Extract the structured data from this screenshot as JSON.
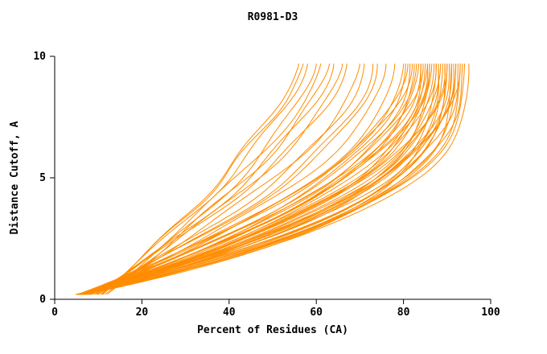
{
  "title": "R0981-D3",
  "colors": {
    "curve": "#ff8c00",
    "axis": "#000000",
    "background": "#ffffff",
    "text": "#000000"
  },
  "chart_data": {
    "type": "line",
    "title": "R0981-D3",
    "xlabel": "Percent of Residues (CA)",
    "ylabel": "Distance Cutoff, A",
    "xlim": [
      0,
      100
    ],
    "ylim": [
      0,
      10
    ],
    "xticks": [
      0,
      20,
      40,
      60,
      80,
      100
    ],
    "yticks": [
      0,
      5,
      10
    ],
    "grid": false,
    "legend": false,
    "curve_color": "#ff8c00",
    "y_start": 0.2,
    "y_end": 9.7,
    "curve_model": "x(y) = x_end - (x_end - x_start) * ((9.7 - y) / 9.5)^shape  for y in [0.2, 9.7]; wiggle term wiggle_amp * sin(wiggle_freq*y + wiggle_phase) * sin(pi*(y-0.2)/9.5) added to x",
    "curve_param_names": [
      "x_start",
      "x_end",
      "shape",
      "wiggle_amp",
      "wiggle_freq",
      "wiggle_phase"
    ],
    "curves": [
      [
        5.0,
        95.0,
        2.9,
        0.5,
        1.3,
        0.5
      ],
      [
        5.5,
        94.0,
        2.8,
        0.7,
        1.1,
        1.2
      ],
      [
        6.0,
        93.5,
        2.7,
        0.5,
        1.6,
        2.0
      ],
      [
        4.8,
        93.0,
        2.9,
        0.6,
        1.2,
        0.2
      ],
      [
        5.2,
        92.5,
        2.6,
        0.8,
        1.4,
        2.8
      ],
      [
        6.5,
        92.0,
        2.8,
        0.5,
        1.0,
        1.7
      ],
      [
        5.8,
        91.5,
        2.5,
        0.7,
        1.5,
        0.9
      ],
      [
        5.1,
        91.0,
        2.7,
        0.5,
        1.2,
        2.4
      ],
      [
        6.2,
        90.5,
        2.4,
        0.6,
        1.3,
        3.1
      ],
      [
        5.4,
        90.0,
        2.8,
        0.5,
        1.1,
        1.5
      ],
      [
        6.8,
        89.5,
        2.3,
        0.8,
        1.4,
        0.7
      ],
      [
        5.6,
        89.0,
        2.6,
        0.5,
        1.7,
        2.2
      ],
      [
        6.1,
        88.5,
        2.2,
        0.7,
        1.2,
        1.0
      ],
      [
        5.3,
        88.0,
        2.5,
        0.6,
        1.3,
        2.9
      ],
      [
        6.4,
        87.5,
        2.1,
        0.5,
        1.5,
        0.4
      ],
      [
        5.7,
        87.0,
        2.4,
        0.8,
        1.1,
        1.9
      ],
      [
        6.0,
        86.5,
        2.0,
        0.5,
        1.4,
        3.0
      ],
      [
        5.2,
        86.0,
        2.3,
        0.7,
        1.2,
        1.3
      ],
      [
        6.6,
        85.5,
        2.0,
        0.5,
        1.6,
        2.6
      ],
      [
        5.9,
        85.0,
        2.2,
        0.6,
        1.0,
        0.8
      ],
      [
        6.3,
        84.5,
        1.9,
        0.8,
        1.3,
        2.1
      ],
      [
        5.5,
        84.0,
        2.1,
        0.5,
        1.5,
        1.6
      ],
      [
        7.0,
        83.5,
        2.0,
        0.7,
        1.2,
        0.3
      ],
      [
        5.8,
        83.0,
        1.9,
        0.5,
        1.4,
        2.7
      ],
      [
        6.2,
        82.5,
        2.2,
        0.6,
        1.1,
        1.1
      ],
      [
        5.4,
        82.0,
        1.8,
        0.8,
        1.3,
        2.3
      ],
      [
        6.7,
        81.5,
        2.1,
        0.5,
        1.6,
        0.6
      ],
      [
        5.6,
        81.0,
        1.8,
        0.7,
        1.2,
        1.8
      ],
      [
        6.0,
        80.5,
        2.0,
        0.5,
        1.4,
        3.1
      ],
      [
        5.3,
        80.0,
        1.9,
        0.6,
        1.0,
        1.4
      ],
      [
        7.2,
        88.0,
        3.0,
        0.5,
        1.3,
        2.5
      ],
      [
        6.9,
        91.0,
        3.0,
        0.7,
        1.1,
        0.9
      ],
      [
        5.0,
        92.0,
        2.3,
        0.5,
        1.5,
        2.0
      ],
      [
        6.5,
        86.0,
        2.6,
        0.8,
        1.2,
        1.2
      ],
      [
        5.9,
        89.5,
        2.8,
        0.5,
        1.4,
        2.8
      ],
      [
        6.1,
        84.0,
        2.4,
        0.6,
        1.6,
        0.5
      ],
      [
        5.5,
        87.5,
        2.7,
        0.7,
        1.1,
        1.7
      ],
      [
        6.8,
        90.0,
        2.1,
        0.5,
        1.3,
        3.0
      ],
      [
        5.2,
        85.5,
        2.3,
        0.8,
        1.5,
        0.1
      ],
      [
        6.3,
        93.0,
        2.2,
        0.5,
        1.2,
        2.2
      ],
      [
        7.5,
        76.0,
        1.8,
        0.9,
        1.2,
        1.0
      ],
      [
        8.0,
        73.0,
        1.7,
        1.0,
        1.3,
        2.5
      ],
      [
        9.0,
        70.0,
        1.6,
        1.1,
        1.1,
        0.7
      ],
      [
        8.5,
        67.0,
        1.5,
        0.9,
        1.4,
        1.9
      ],
      [
        9.5,
        64.0,
        1.45,
        1.2,
        1.2,
        3.0
      ],
      [
        10.0,
        61.0,
        1.4,
        1.0,
        1.0,
        0.4
      ],
      [
        10.5,
        58.0,
        1.35,
        1.1,
        1.3,
        2.1
      ],
      [
        11.0,
        56.0,
        1.3,
        0.9,
        1.5,
        1.3
      ],
      [
        12.0,
        60.0,
        1.4,
        1.2,
        1.1,
        2.7
      ],
      [
        9.8,
        66.0,
        1.5,
        1.0,
        1.2,
        0.9
      ],
      [
        8.2,
        71.0,
        1.65,
        0.9,
        1.4,
        2.3
      ],
      [
        7.8,
        78.0,
        1.9,
        0.8,
        1.1,
        1.5
      ],
      [
        11.5,
        63.0,
        1.4,
        1.1,
        1.3,
        0.2
      ],
      [
        6.9,
        74.0,
        1.75,
        0.9,
        1.2,
        2.9
      ],
      [
        10.8,
        57.0,
        1.3,
        1.0,
        1.6,
        1.1
      ]
    ]
  }
}
